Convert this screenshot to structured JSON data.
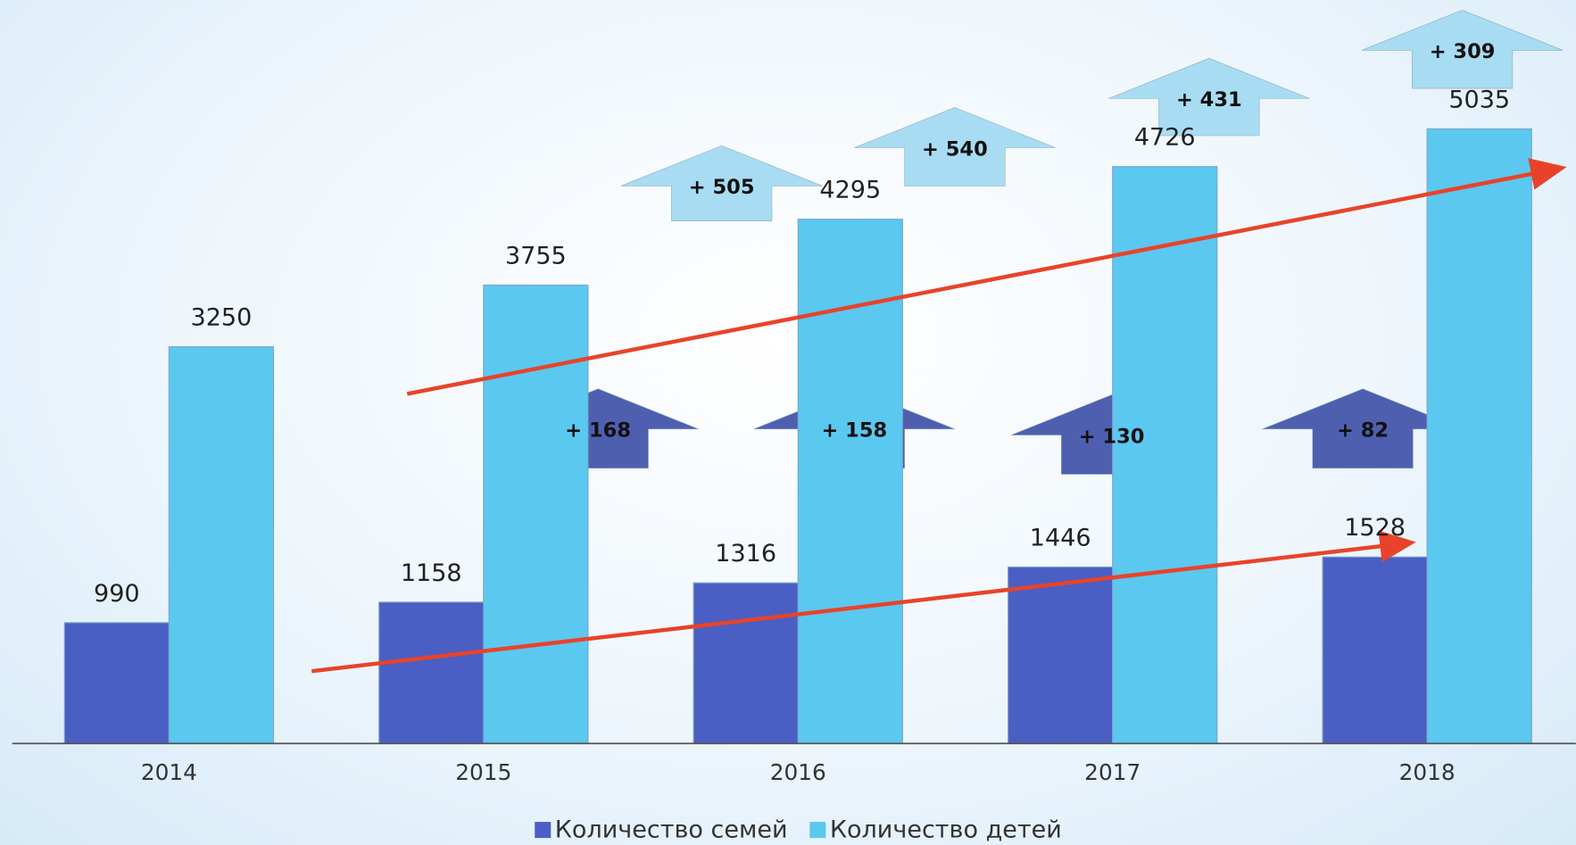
{
  "chart_data": {
    "type": "bar",
    "categories": [
      "2014",
      "2015",
      "2016",
      "2017",
      "2018"
    ],
    "series": [
      {
        "name": "Количество семей",
        "color": "#4a5ec4",
        "values": [
          990,
          1158,
          1316,
          1446,
          1528
        ]
      },
      {
        "name": "Количество детей",
        "color": "#5bc8f0",
        "values": [
          3250,
          3755,
          4295,
          4726,
          5035
        ]
      }
    ],
    "ylim": [
      0,
      6000
    ],
    "annotations": [
      "+ 505",
      "+ 540",
      "+ 431",
      "+ 309",
      "+ 168",
      "+ 158",
      "+ 130",
      "+ 82"
    ],
    "legend": "bottom"
  }
}
